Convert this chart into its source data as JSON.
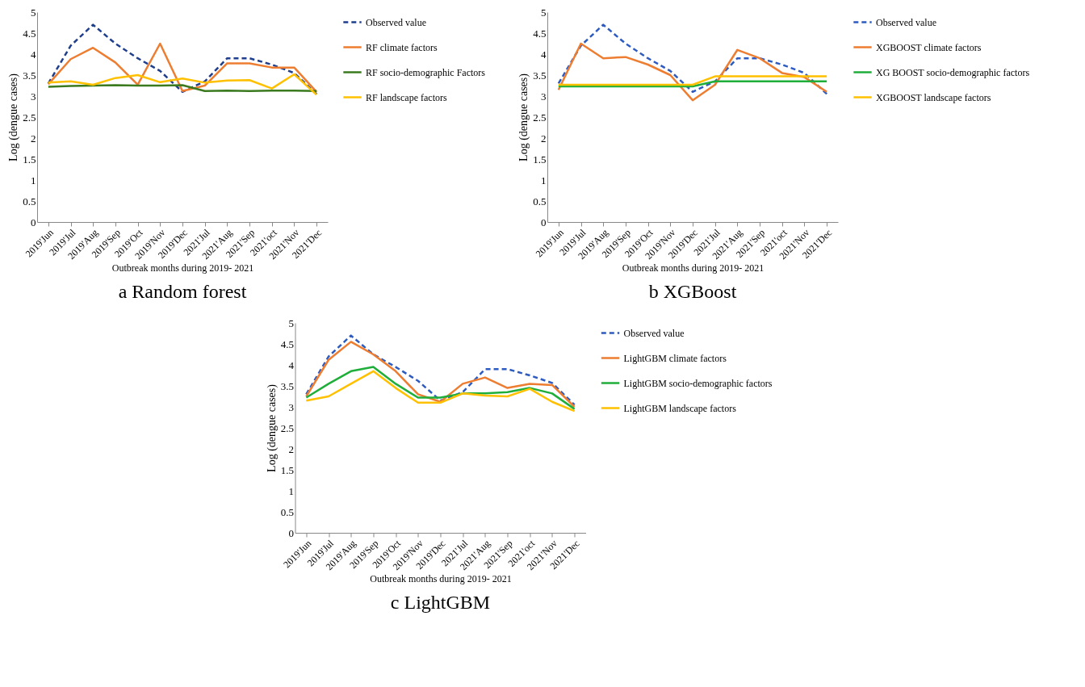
{
  "chart_data": [
    {
      "type": "line",
      "title": "a  Random forest",
      "xlabel": "Outbreak months during 2019- 2021",
      "ylabel": "Log (dengue cases)",
      "categories": [
        "2019'Jun",
        "2019'Jul",
        "2019'Aug",
        "2019'Sep",
        "2019'Oct",
        "2019'Nov",
        "2019'Dec",
        "2021'Jul",
        "2021'Aug",
        "2021'Sep",
        "2021'oct",
        "2021'Nov",
        "2021'Dec"
      ],
      "series": [
        {
          "name": "Observed value",
          "color": "#1f3e8c",
          "line_style": "dashed",
          "values": [
            3.3,
            4.2,
            4.7,
            4.25,
            3.9,
            3.6,
            3.1,
            3.35,
            3.9,
            3.9,
            3.75,
            3.55,
            3.05
          ]
        },
        {
          "name": "RF climate  factors",
          "color": "#ed7d31",
          "line_style": "solid",
          "values": [
            3.28,
            3.88,
            4.15,
            3.8,
            3.27,
            4.25,
            3.12,
            3.25,
            3.78,
            3.78,
            3.68,
            3.68,
            3.1
          ]
        },
        {
          "name": "RF socio-demographic Factors",
          "color": "#3b7a1f",
          "line_style": "solid",
          "values": [
            3.22,
            3.24,
            3.25,
            3.26,
            3.25,
            3.25,
            3.26,
            3.12,
            3.13,
            3.12,
            3.13,
            3.13,
            3.12
          ]
        },
        {
          "name": "RF landscape factors",
          "color": "#ffc000",
          "line_style": "solid",
          "values": [
            3.32,
            3.35,
            3.27,
            3.43,
            3.5,
            3.33,
            3.42,
            3.32,
            3.37,
            3.38,
            3.18,
            3.52,
            3.03
          ]
        }
      ],
      "ylim": [
        0,
        5
      ],
      "yticks": [
        0,
        0.5,
        1,
        1.5,
        2,
        2.5,
        3,
        3.5,
        4,
        4.5,
        5
      ],
      "grid": false,
      "legend": "right"
    },
    {
      "type": "line",
      "title": "b  XGBoost",
      "xlabel": "Outbreak months during 2019- 2021",
      "ylabel": "Log (dengue cases)",
      "categories": [
        "2019'Jun",
        "2019'Jul",
        "2019'Aug",
        "2019'Sep",
        "2019'Oct",
        "2019'Nov",
        "2019'Dec",
        "2021'Jul",
        "2021'Aug",
        "2021'Sep",
        "2021'oct",
        "2021'Nov",
        "2021'Dec"
      ],
      "series": [
        {
          "name": "Observed value",
          "color": "#2e5bc0",
          "line_style": "dashed",
          "values": [
            3.3,
            4.2,
            4.7,
            4.25,
            3.9,
            3.6,
            3.1,
            3.35,
            3.9,
            3.9,
            3.75,
            3.55,
            3.05
          ]
        },
        {
          "name": "XGBOOST climate factors",
          "color": "#ed7d31",
          "line_style": "solid",
          "values": [
            3.15,
            4.25,
            3.9,
            3.93,
            3.75,
            3.5,
            2.9,
            3.27,
            4.1,
            3.9,
            3.55,
            3.45,
            3.1
          ]
        },
        {
          "name": "XG BOOST socio-demographic factors",
          "color": "#1fae3a",
          "line_style": "solid",
          "values": [
            3.23,
            3.23,
            3.23,
            3.23,
            3.23,
            3.23,
            3.23,
            3.35,
            3.35,
            3.35,
            3.35,
            3.35,
            3.35
          ]
        },
        {
          "name": "XGBOOST landscape factors",
          "color": "#ffc000",
          "line_style": "solid",
          "values": [
            3.27,
            3.27,
            3.27,
            3.27,
            3.27,
            3.27,
            3.27,
            3.47,
            3.47,
            3.47,
            3.47,
            3.47,
            3.47
          ]
        }
      ],
      "ylim": [
        0,
        5
      ],
      "yticks": [
        0,
        0.5,
        1,
        1.5,
        2,
        2.5,
        3,
        3.5,
        4,
        4.5,
        5
      ],
      "grid": false,
      "legend": "right"
    },
    {
      "type": "line",
      "title": "c  LightGBM",
      "xlabel": "Outbreak  months during 2019- 2021",
      "ylabel": "Log (dengue cases)",
      "categories": [
        "2019'Jun",
        "2019'Jul",
        "2019'Aug",
        "2019'Sep",
        "2019'Oct",
        "2019'Nov",
        "2019'Dec",
        "2021'Jul",
        "2021'Aug",
        "2021'Sep",
        "2021'oct",
        "2021'Nov",
        "2021'Dec"
      ],
      "series": [
        {
          "name": "Observed value",
          "color": "#2e5bc0",
          "line_style": "dashed",
          "values": [
            3.3,
            4.2,
            4.7,
            4.25,
            3.95,
            3.62,
            3.15,
            3.35,
            3.9,
            3.9,
            3.75,
            3.57,
            3.05
          ]
        },
        {
          "name": "LightGBM climate factors",
          "color": "#ed7d31",
          "line_style": "solid",
          "values": [
            3.25,
            4.12,
            4.55,
            4.25,
            3.85,
            3.3,
            3.12,
            3.55,
            3.7,
            3.45,
            3.55,
            3.52,
            3.0
          ]
        },
        {
          "name": "LightGBM socio-demographic factors",
          "color": "#1fae3a",
          "line_style": "solid",
          "values": [
            3.22,
            3.55,
            3.85,
            3.95,
            3.55,
            3.22,
            3.22,
            3.32,
            3.32,
            3.35,
            3.45,
            3.32,
            2.95
          ]
        },
        {
          "name": "LightGBM landscape factors",
          "color": "#ffc000",
          "line_style": "solid",
          "values": [
            3.15,
            3.25,
            3.55,
            3.85,
            3.45,
            3.1,
            3.1,
            3.32,
            3.27,
            3.25,
            3.43,
            3.12,
            2.9
          ]
        }
      ],
      "ylim": [
        0,
        5
      ],
      "yticks": [
        0,
        0.5,
        1,
        1.5,
        2,
        2.5,
        3,
        3.5,
        4,
        4.5,
        5
      ],
      "grid": false,
      "legend": "right"
    }
  ]
}
